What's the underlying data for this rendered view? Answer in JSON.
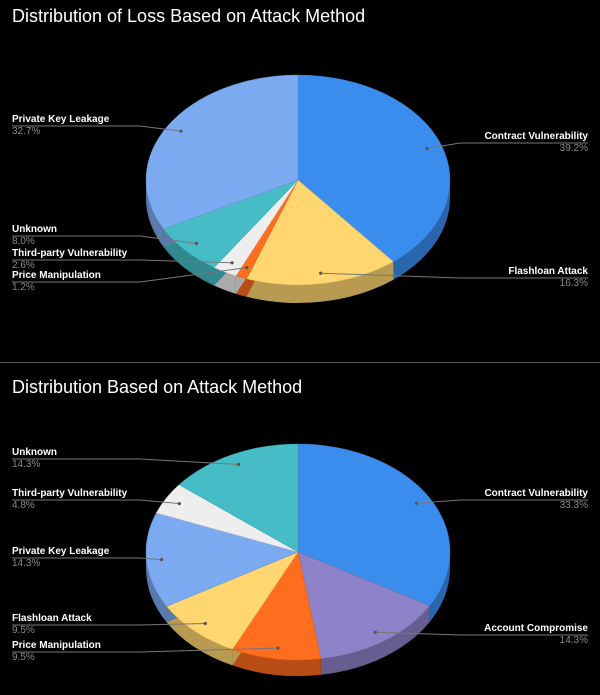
{
  "chart_data": [
    {
      "type": "pie",
      "title": "Distribution of Loss Based on Attack Method",
      "three_d": true,
      "slices": [
        {
          "label": "Contract Vulnerability",
          "value": 39.2,
          "display": "39.2%",
          "color": "#3b8ded"
        },
        {
          "label": "Flashloan Attack",
          "value": 16.3,
          "display": "16.3%",
          "color": "#ffd66f"
        },
        {
          "label": "Price Manipulation",
          "value": 1.2,
          "display": "1.2%",
          "color": "#ff6d1f"
        },
        {
          "label": "Third-party Vulnerability",
          "value": 2.6,
          "display": "2.6%",
          "color": "#eeeeee"
        },
        {
          "label": "Unknown",
          "value": 8.0,
          "display": "8.0%",
          "color": "#46bdc6"
        },
        {
          "label": "Private Key Leakage",
          "value": 32.7,
          "display": "32.7%",
          "color": "#7baaf0"
        }
      ]
    },
    {
      "type": "pie",
      "title": "Distribution Based on Attack Method",
      "three_d": true,
      "slices": [
        {
          "label": "Contract Vulnerability",
          "value": 33.3,
          "display": "33.3%",
          "color": "#3b8ded"
        },
        {
          "label": "Account Compromise",
          "value": 14.3,
          "display": "14.3%",
          "color": "#8e82c8"
        },
        {
          "label": "Price Manipulation",
          "value": 9.5,
          "display": "9.5%",
          "color": "#ff6d1f"
        },
        {
          "label": "Flashloan Attack",
          "value": 9.5,
          "display": "9.5%",
          "color": "#ffd66f"
        },
        {
          "label": "Private Key Leakage",
          "value": 14.3,
          "display": "14.3%",
          "color": "#7baaf0"
        },
        {
          "label": "Third-party Vulnerability",
          "value": 4.8,
          "display": "4.8%",
          "color": "#eeeeee"
        },
        {
          "label": "Unknown",
          "value": 14.3,
          "display": "14.3%",
          "color": "#46bdc6"
        }
      ]
    }
  ]
}
